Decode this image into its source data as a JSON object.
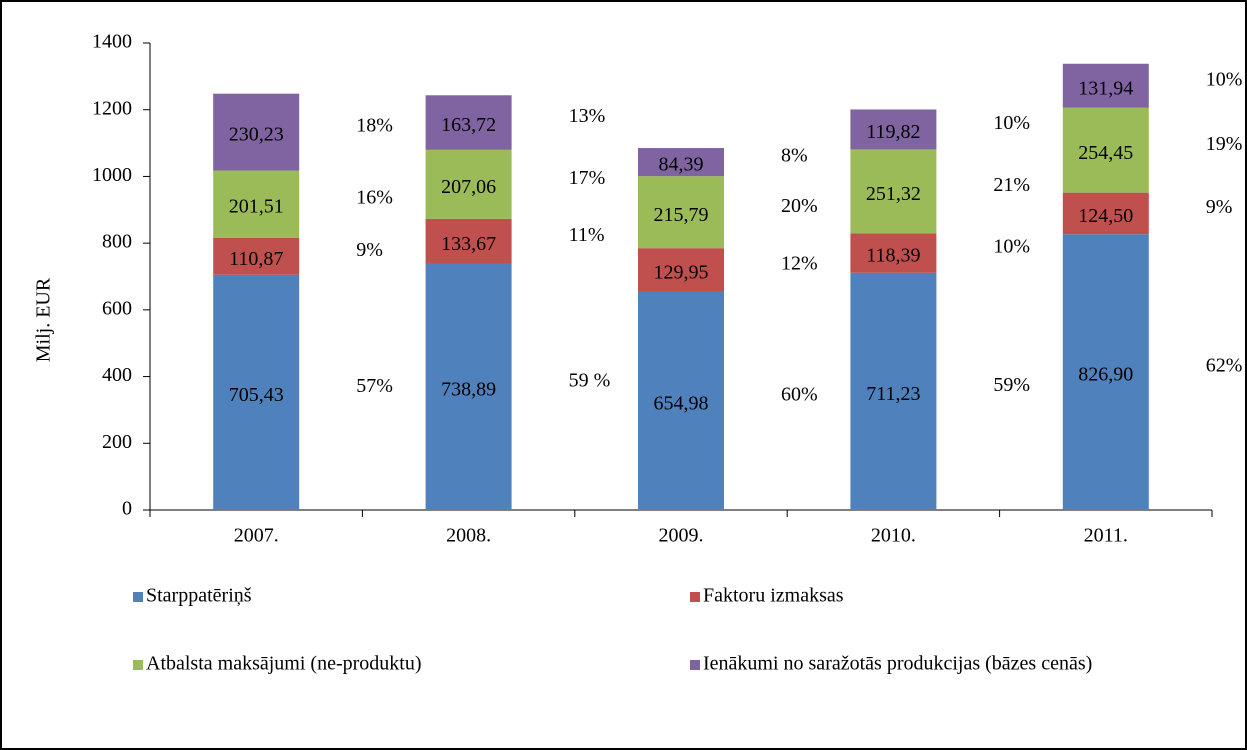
{
  "chart_data": {
    "type": "stacked_bar",
    "ylabel": "Milj. EUR",
    "categories": [
      "2007.",
      "2008.",
      "2009.",
      "2010.",
      "2011."
    ],
    "series": [
      {
        "name": "Starppatēriņš",
        "color": "#4f81bd",
        "values": [
          705.43,
          738.89,
          654.98,
          711.23,
          826.9
        ],
        "value_labels": [
          "705,43",
          "738,89",
          "654,98",
          "711,23",
          "826,90"
        ],
        "share_labels": [
          "57%",
          "59 %",
          "60%",
          "59%",
          "62%"
        ]
      },
      {
        "name": "Faktoru izmaksas",
        "color": "#c0504d",
        "values": [
          110.87,
          133.67,
          129.95,
          118.39,
          124.5
        ],
        "value_labels": [
          "110,87",
          "133,67",
          "129,95",
          "118,39",
          "124,50"
        ],
        "share_labels": [
          "9%",
          "11%",
          "12%",
          "10%",
          "9%"
        ]
      },
      {
        "name": "Atbalsta maksājumi (ne-produktu)",
        "color": "#9bbb59",
        "values": [
          201.51,
          207.06,
          215.79,
          251.32,
          254.45
        ],
        "value_labels": [
          "201,51",
          "207,06",
          "215,79",
          "251,32",
          "254,45"
        ],
        "share_labels": [
          "16%",
          "17%",
          "20%",
          "21%",
          "19%"
        ]
      },
      {
        "name": "Ienākumi no saražotās produkcijas (bāzes cenās)",
        "color": "#8064a2",
        "values": [
          230.23,
          163.72,
          84.39,
          119.82,
          131.94
        ],
        "value_labels": [
          "230,23",
          "163,72",
          "84,39",
          "119,82",
          "131,94"
        ],
        "share_labels": [
          "18%",
          "13%",
          "8%",
          "10%",
          "10%"
        ]
      }
    ],
    "ylim": [
      0,
      1400
    ],
    "yticks": [
      0,
      200,
      400,
      600,
      800,
      1000,
      1200,
      1400
    ]
  }
}
